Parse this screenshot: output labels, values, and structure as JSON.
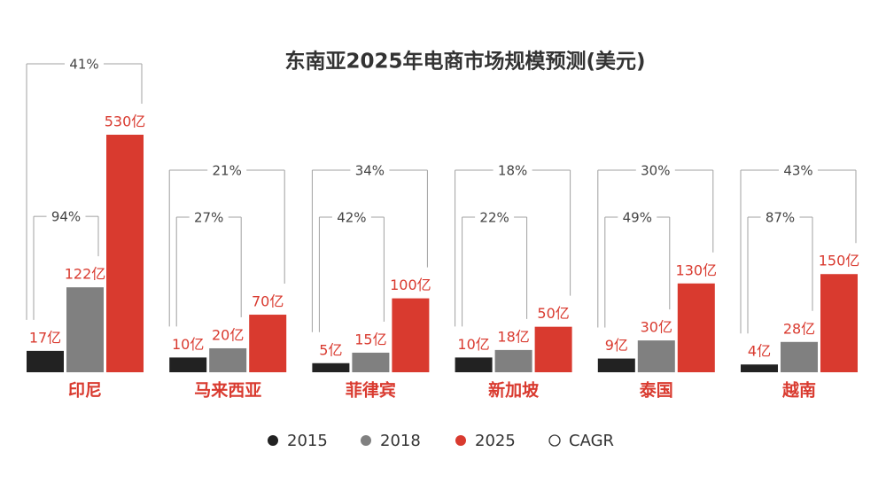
{
  "chart_data": {
    "type": "bar",
    "title": "东南亚2025年电商市场规模预测(美元)",
    "categories": [
      "印尼",
      "马来西亚",
      "菲律宾",
      "新加坡",
      "泰国",
      "越南"
    ],
    "series": [
      {
        "name": "2015",
        "color": "#222222",
        "values": [
          17,
          10,
          5,
          10,
          9,
          4
        ],
        "value_labels": [
          "17亿",
          "10亿",
          "5亿",
          "10亿",
          "9亿",
          "4亿"
        ]
      },
      {
        "name": "2018",
        "color": "#808080",
        "values": [
          122,
          20,
          15,
          18,
          30,
          28
        ],
        "value_labels": [
          "122亿",
          "20亿",
          "15亿",
          "18亿",
          "30亿",
          "28亿"
        ]
      },
      {
        "name": "2025",
        "color": "#d93a2f",
        "values": [
          530,
          70,
          100,
          50,
          130,
          150
        ],
        "value_labels": [
          "530亿",
          "70亿",
          "100亿",
          "50亿",
          "130亿",
          "150亿"
        ]
      }
    ],
    "cagr": {
      "name": "CAGR",
      "series": [
        {
          "values": [
            41,
            21,
            34,
            18,
            30,
            43
          ],
          "value_labels": [
            "41%",
            "21%",
            "34%",
            "18%",
            "30%",
            "43%"
          ]
        },
        {
          "values": [
            94,
            27,
            42,
            22,
            49,
            87
          ],
          "value_labels": [
            "94%",
            "27%",
            "42%",
            "22%",
            "49%",
            "87%"
          ]
        }
      ]
    },
    "label_color": "#d93a2f"
  }
}
